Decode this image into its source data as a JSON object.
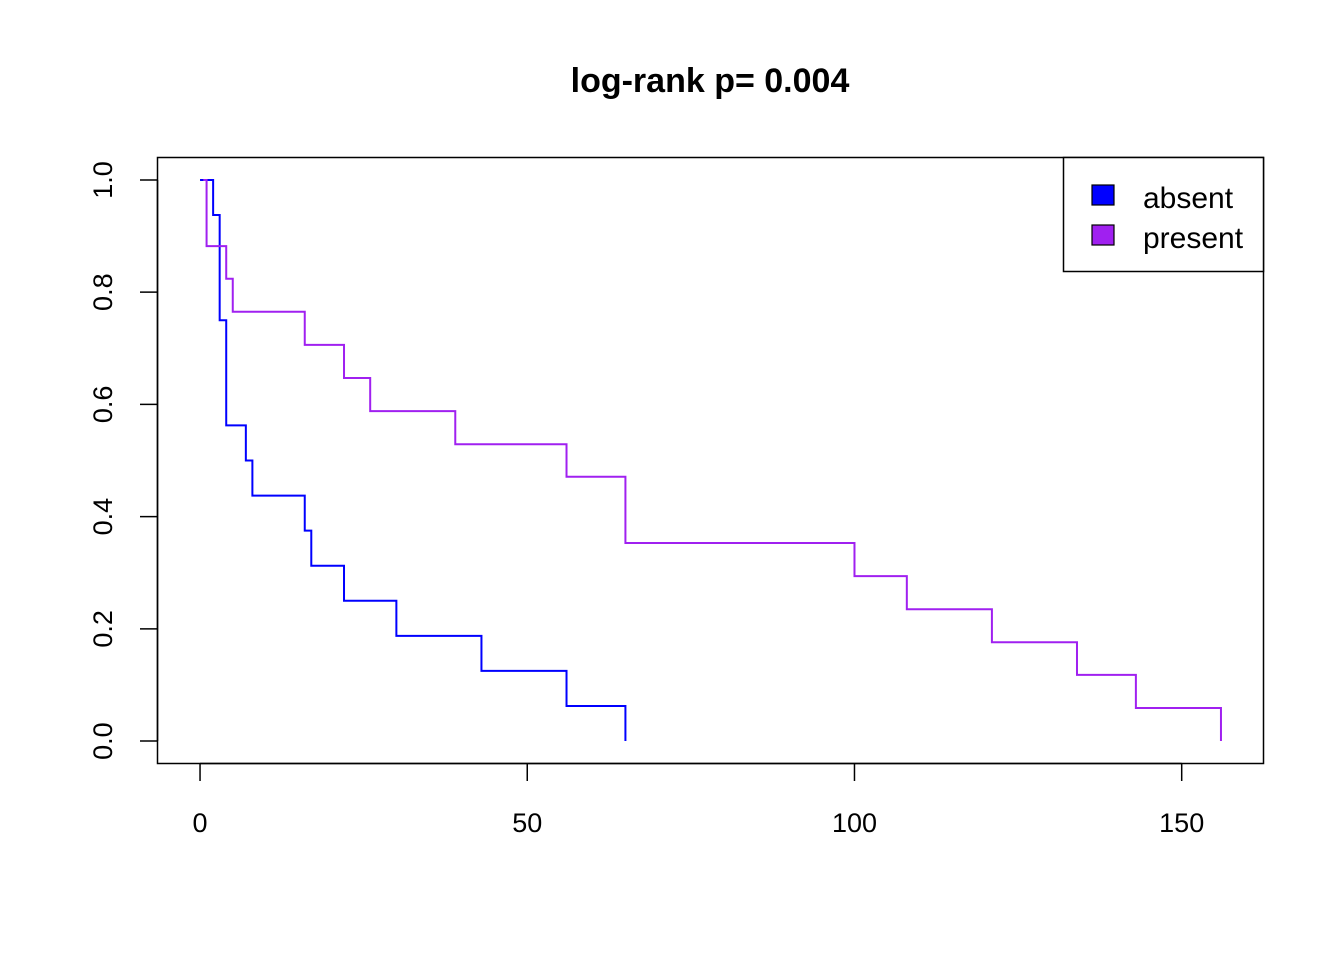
{
  "chart_data": {
    "type": "line",
    "title": "log-rank p= 0.004",
    "xlabel": "",
    "ylabel": "",
    "xlim": [
      -6.5,
      162.5
    ],
    "ylim": [
      -0.04,
      1.04
    ],
    "x_ticks": [
      0,
      50,
      100,
      150
    ],
    "x_tick_labels": [
      "0",
      "50",
      "100",
      "150"
    ],
    "y_ticks": [
      0.0,
      0.2,
      0.4,
      0.6,
      0.8,
      1.0
    ],
    "y_tick_labels": [
      "0.0",
      "0.2",
      "0.4",
      "0.6",
      "0.8",
      "1.0"
    ],
    "grid": false,
    "legend_position": "top-right",
    "step": true,
    "series": [
      {
        "name": "absent",
        "color": "#0000ff",
        "x": [
          0,
          1.8,
          1.8,
          2.0,
          2.0,
          3.0,
          3.0,
          3.5,
          3.5,
          4.0,
          4.0,
          7.0,
          7.0,
          8.0,
          8.0,
          16.0,
          16.0,
          17.0,
          17.0,
          22.0,
          22.0,
          30.0,
          30.0,
          43.0,
          43.0,
          56.0,
          56.0,
          65.0,
          65.0
        ],
        "y": [
          1.0,
          1.0,
          1.0,
          1.0,
          0.9375,
          0.9375,
          0.75,
          0.75,
          0.75,
          0.75,
          0.5625,
          0.5625,
          0.5,
          0.5,
          0.4375,
          0.4375,
          0.375,
          0.375,
          0.3125,
          0.3125,
          0.25,
          0.25,
          0.1875,
          0.1875,
          0.125,
          0.125,
          0.0625,
          0.0625,
          0.0
        ]
      },
      {
        "name": "present",
        "color": "#a020f0",
        "x": [
          0.5,
          1.0,
          1.0,
          3.8,
          3.8,
          4.0,
          4.0,
          5.0,
          5.0,
          16.0,
          16.0,
          22.0,
          22.0,
          26.0,
          26.0,
          39.0,
          39.0,
          56.0,
          56.0,
          65.0,
          65.0,
          100.0,
          100.0,
          108.0,
          108.0,
          121.0,
          121.0,
          134.0,
          134.0,
          143.0,
          143.0,
          156.0,
          156.0
        ],
        "y": [
          1.0,
          1.0,
          0.882,
          0.882,
          0.882,
          0.882,
          0.824,
          0.824,
          0.765,
          0.765,
          0.706,
          0.706,
          0.647,
          0.647,
          0.588,
          0.588,
          0.529,
          0.529,
          0.471,
          0.471,
          0.353,
          0.353,
          0.294,
          0.294,
          0.235,
          0.235,
          0.176,
          0.176,
          0.118,
          0.118,
          0.059,
          0.059,
          0.0
        ]
      }
    ]
  }
}
